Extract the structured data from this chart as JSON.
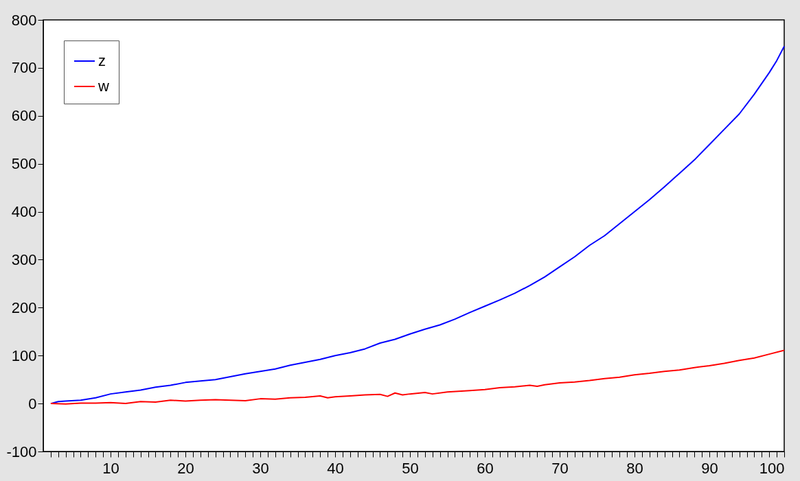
{
  "chart_data": {
    "type": "line",
    "xlim": [
      1,
      100
    ],
    "ylim": [
      -100,
      800
    ],
    "xticks": [
      {
        "value": 2,
        "label": null
      },
      {
        "value": 3,
        "label": null
      },
      {
        "value": 4,
        "label": null
      },
      {
        "value": 5,
        "label": null
      },
      {
        "value": 6,
        "label": null
      },
      {
        "value": 7,
        "label": null
      },
      {
        "value": 8,
        "label": null
      },
      {
        "value": 9,
        "label": null
      },
      10,
      {
        "value": 11,
        "label": null
      },
      {
        "value": 12,
        "label": null
      },
      {
        "value": 13,
        "label": null
      },
      {
        "value": 14,
        "label": null
      },
      {
        "value": 15,
        "label": null
      },
      {
        "value": 16,
        "label": null
      },
      {
        "value": 17,
        "label": null
      },
      {
        "value": 18,
        "label": null
      },
      {
        "value": 19,
        "label": null
      },
      20,
      {
        "value": 21,
        "label": null
      },
      {
        "value": 22,
        "label": null
      },
      {
        "value": 23,
        "label": null
      },
      {
        "value": 24,
        "label": null
      },
      {
        "value": 25,
        "label": null
      },
      {
        "value": 26,
        "label": null
      },
      {
        "value": 27,
        "label": null
      },
      {
        "value": 28,
        "label": null
      },
      {
        "value": 29,
        "label": null
      },
      30,
      {
        "value": 31,
        "label": null
      },
      {
        "value": 32,
        "label": null
      },
      {
        "value": 33,
        "label": null
      },
      {
        "value": 34,
        "label": null
      },
      {
        "value": 35,
        "label": null
      },
      {
        "value": 36,
        "label": null
      },
      {
        "value": 37,
        "label": null
      },
      {
        "value": 38,
        "label": null
      },
      {
        "value": 39,
        "label": null
      },
      40,
      {
        "value": 41,
        "label": null
      },
      {
        "value": 42,
        "label": null
      },
      {
        "value": 43,
        "label": null
      },
      {
        "value": 44,
        "label": null
      },
      {
        "value": 45,
        "label": null
      },
      {
        "value": 46,
        "label": null
      },
      {
        "value": 47,
        "label": null
      },
      {
        "value": 48,
        "label": null
      },
      {
        "value": 49,
        "label": null
      },
      50,
      {
        "value": 51,
        "label": null
      },
      {
        "value": 52,
        "label": null
      },
      {
        "value": 53,
        "label": null
      },
      {
        "value": 54,
        "label": null
      },
      {
        "value": 55,
        "label": null
      },
      {
        "value": 56,
        "label": null
      },
      {
        "value": 57,
        "label": null
      },
      {
        "value": 58,
        "label": null
      },
      {
        "value": 59,
        "label": null
      },
      60,
      {
        "value": 61,
        "label": null
      },
      {
        "value": 62,
        "label": null
      },
      {
        "value": 63,
        "label": null
      },
      {
        "value": 64,
        "label": null
      },
      {
        "value": 65,
        "label": null
      },
      {
        "value": 66,
        "label": null
      },
      {
        "value": 67,
        "label": null
      },
      {
        "value": 68,
        "label": null
      },
      {
        "value": 69,
        "label": null
      },
      70,
      {
        "value": 71,
        "label": null
      },
      {
        "value": 72,
        "label": null
      },
      {
        "value": 73,
        "label": null
      },
      {
        "value": 74,
        "label": null
      },
      {
        "value": 75,
        "label": null
      },
      {
        "value": 76,
        "label": null
      },
      {
        "value": 77,
        "label": null
      },
      {
        "value": 78,
        "label": null
      },
      {
        "value": 79,
        "label": null
      },
      80,
      {
        "value": 81,
        "label": null
      },
      {
        "value": 82,
        "label": null
      },
      {
        "value": 83,
        "label": null
      },
      {
        "value": 84,
        "label": null
      },
      {
        "value": 85,
        "label": null
      },
      {
        "value": 86,
        "label": null
      },
      {
        "value": 87,
        "label": null
      },
      {
        "value": 88,
        "label": null
      },
      {
        "value": 89,
        "label": null
      },
      90,
      {
        "value": 91,
        "label": null
      },
      {
        "value": 92,
        "label": null
      },
      {
        "value": 93,
        "label": null
      },
      {
        "value": 94,
        "label": null
      },
      {
        "value": 95,
        "label": null
      },
      {
        "value": 96,
        "label": null
      },
      {
        "value": 97,
        "label": null
      },
      {
        "value": 98,
        "label": null
      },
      {
        "value": 99,
        "label": null
      },
      100
    ],
    "yticks": [
      -100,
      0,
      100,
      200,
      300,
      400,
      500,
      600,
      700,
      800
    ],
    "grid": false,
    "legend": "top left",
    "marker": "none",
    "line_style": "solid",
    "series": [
      {
        "name": "z",
        "color": "#0000ff",
        "x": [
          2,
          3,
          4,
          6,
          8,
          10,
          12,
          14,
          16,
          18,
          20,
          22,
          24,
          26,
          28,
          30,
          32,
          34,
          36,
          38,
          40,
          42,
          44,
          46,
          48,
          50,
          52,
          54,
          56,
          58,
          60,
          62,
          64,
          66,
          68,
          70,
          72,
          74,
          76,
          78,
          80,
          82,
          84,
          86,
          88,
          90,
          92,
          94,
          96,
          98,
          99,
          100
        ],
        "values": [
          0,
          4,
          5,
          7,
          12,
          20,
          24,
          28,
          34,
          38,
          44,
          47,
          50,
          56,
          62,
          67,
          72,
          80,
          86,
          92,
          100,
          106,
          114,
          126,
          134,
          145,
          155,
          164,
          176,
          190,
          203,
          216,
          230,
          246,
          264,
          285,
          306,
          330,
          350,
          375,
          400,
          425,
          452,
          480,
          508,
          540,
          572,
          604,
          645,
          690,
          715,
          745
        ]
      },
      {
        "name": "w",
        "color": "#ff0000",
        "x": [
          2,
          4,
          6,
          8,
          10,
          12,
          14,
          16,
          18,
          20,
          22,
          24,
          26,
          28,
          30,
          32,
          34,
          36,
          38,
          39,
          40,
          42,
          44,
          46,
          47,
          48,
          49,
          50,
          52,
          53,
          55,
          58,
          60,
          62,
          64,
          66,
          67,
          68,
          70,
          72,
          74,
          76,
          78,
          80,
          82,
          84,
          86,
          88,
          90,
          92,
          94,
          96,
          98,
          100
        ],
        "values": [
          0,
          -1,
          1,
          1,
          2,
          0,
          4,
          3,
          7,
          5,
          7,
          8,
          7,
          6,
          10,
          9,
          12,
          13,
          16,
          12,
          14,
          16,
          18,
          19,
          15,
          22,
          18,
          20,
          23,
          20,
          24,
          27,
          29,
          33,
          35,
          38,
          36,
          39,
          43,
          45,
          48,
          52,
          55,
          60,
          63,
          67,
          70,
          75,
          79,
          84,
          90,
          95,
          103,
          111
        ]
      }
    ]
  }
}
